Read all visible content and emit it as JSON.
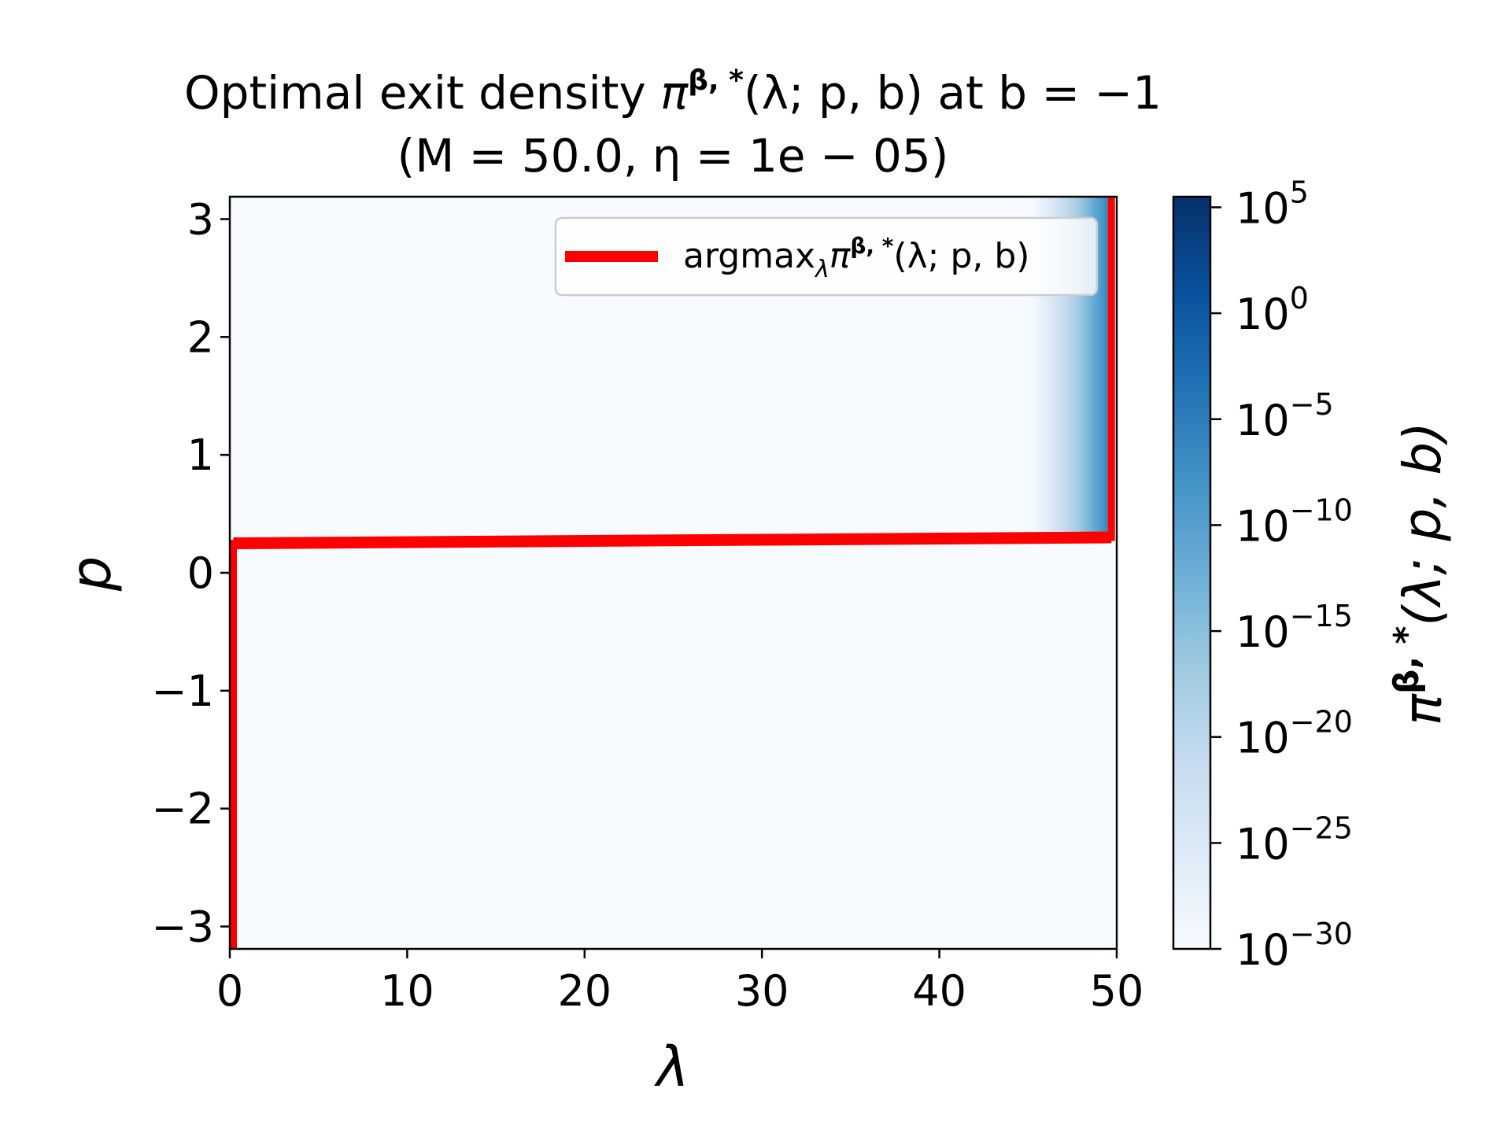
{
  "chart_data": {
    "type": "heatmap",
    "title_line1": {
      "a": "Optimal exit density ",
      "pi": "π",
      "sup": "β, *",
      "args": "(λ; p, b)",
      "b": " at ",
      "eq": "b = −1"
    },
    "title_line2": "(M = 50.0, η = 1e − 05)",
    "xlabel": "λ",
    "ylabel": "p",
    "xlim": [
      0,
      50
    ],
    "ylim": [
      -3.19,
      3.19
    ],
    "xticks": [
      "0",
      "10",
      "20",
      "30",
      "40",
      "50"
    ],
    "xtick_values": [
      0,
      10,
      20,
      30,
      40,
      50
    ],
    "yticks": [
      "−3",
      "−2",
      "−1",
      "0",
      "1",
      "2",
      "3"
    ],
    "ytick_values": [
      -3,
      -2,
      -1,
      0,
      1,
      2,
      3
    ],
    "colorbar": {
      "label": "π^{β,*}(λ; p, b)",
      "label_parts": {
        "pi": "π",
        "sup": "β, *",
        "args": "(λ; p, b)"
      },
      "scale": "log",
      "range_exponent": [
        -30,
        5.5
      ],
      "tick_exponents": [
        "5",
        "0",
        "−5",
        "−10",
        "−15",
        "−20",
        "−25",
        "−30"
      ],
      "tick_values": [
        5,
        0,
        -5,
        -10,
        -15,
        -20,
        -25,
        -30
      ],
      "tick_base": "10",
      "colormap": [
        "#f7fbff",
        "#deebf7",
        "#c6dbef",
        "#9ecae1",
        "#6baed6",
        "#4292c6",
        "#2171b5",
        "#08519c",
        "#08306b"
      ]
    },
    "heatmap": {
      "description_levels": "density rises from background near λ=45 to high values at λ≈50 for p above the argmax line",
      "lambda_start": 45,
      "lambda_end": 49.7,
      "p_min": 0.3,
      "max_color_fraction": 0.68
    },
    "series": [
      {
        "name": "argmax",
        "legend_label": {
          "a": "argmax",
          "sub": "λ",
          "pi": "π",
          "sup": "β, *",
          "args": "(λ; p, b)"
        },
        "color": "#ff0000",
        "x": [
          0.2,
          0.2,
          49.7,
          49.7
        ],
        "y": [
          -3.19,
          0.25,
          0.3,
          3.19
        ]
      }
    ],
    "legend_position": "upper-right"
  }
}
